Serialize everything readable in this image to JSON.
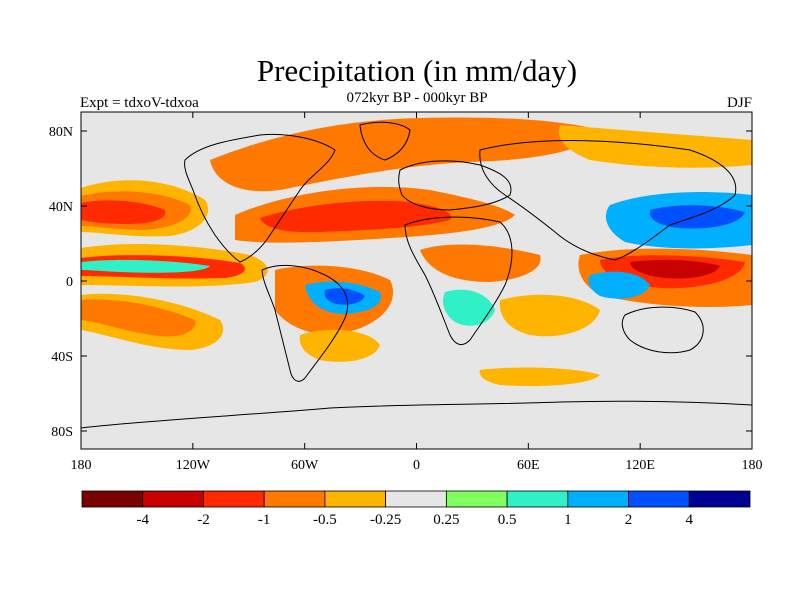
{
  "title": "Precipitation (in mm/day)",
  "subtitle": "072kyr BP - 000kyr BP",
  "left_label": "Expt = tdxoV-tdxoa",
  "right_label": "DJF",
  "map": {
    "lat_labels": [
      "80N",
      "40N",
      "0",
      "40S",
      "80S"
    ],
    "lon_labels": [
      "180",
      "120W",
      "60W",
      "0",
      "60E",
      "120E",
      "180"
    ],
    "background_color": "#e6e6e6",
    "coastline_color": "#000000",
    "anomalies": [
      {
        "region": "north-atlantic-band",
        "level": "-1"
      },
      {
        "region": "north-pacific-band",
        "level": "-1"
      },
      {
        "region": "tropical-east-pacific",
        "level": "-2"
      },
      {
        "region": "maritime-continent",
        "level": "-2"
      },
      {
        "region": "south-america-center",
        "level": "2"
      },
      {
        "region": "west-pacific-north",
        "level": "1"
      }
    ]
  },
  "colorbar": {
    "colors": [
      "#7b0000",
      "#c80000",
      "#ff2a00",
      "#ff7800",
      "#ffb400",
      "#e6e6e6",
      "#80ff60",
      "#30f0c8",
      "#00b0ff",
      "#0050ff",
      "#000090"
    ],
    "labels": [
      "-4",
      "-2",
      "-1",
      "-0.5",
      "-0.25",
      "0.25",
      "0.5",
      "1",
      "2",
      "4"
    ]
  }
}
